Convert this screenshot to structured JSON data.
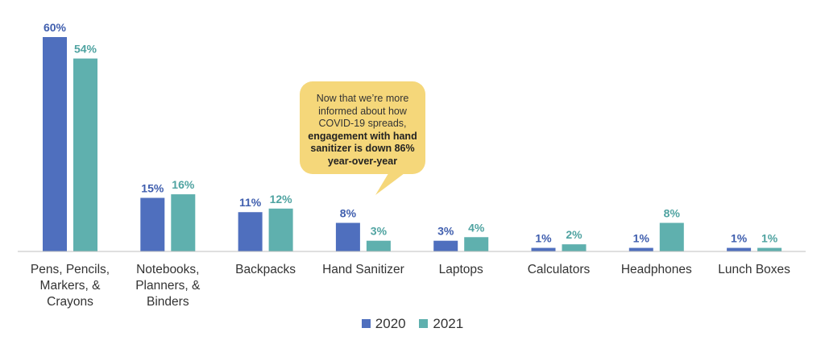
{
  "chart_data": {
    "type": "bar",
    "categories": [
      [
        "Pens, Pencils,",
        "Markers, &",
        "Crayons"
      ],
      [
        "Notebooks,",
        "Planners, &",
        "Binders"
      ],
      [
        "Backpacks"
      ],
      [
        "Hand Sanitizer"
      ],
      [
        "Laptops"
      ],
      [
        "Calculators"
      ],
      [
        "Headphones"
      ],
      [
        "Lunch Boxes"
      ]
    ],
    "series": [
      {
        "name": "2020",
        "color": "#4f6fbe",
        "label_color": "#3f5eae",
        "values": [
          60,
          15,
          11,
          8,
          3,
          1,
          1,
          1
        ],
        "labels": [
          "60%",
          "15%",
          "11%",
          "8%",
          "3%",
          "1%",
          "1%",
          "1%"
        ]
      },
      {
        "name": "2021",
        "color": "#5fb0ae",
        "label_color": "#4fa3a1",
        "values": [
          54,
          16,
          12,
          3,
          4,
          2,
          8,
          1
        ],
        "labels": [
          "54%",
          "16%",
          "12%",
          "3%",
          "4%",
          "2%",
          "8%",
          "1%"
        ]
      }
    ],
    "ylim": [
      0,
      60
    ],
    "legend_position": "bottom",
    "annotation": {
      "lines_normal": [
        "Now that we’re more",
        "informed about how",
        "COVID-19 spreads,"
      ],
      "lines_bold": [
        "engagement with hand",
        "sanitizer is down 86%",
        "year-over-year"
      ],
      "color": "#f5d77a"
    }
  },
  "legend": {
    "item_2020": "2020",
    "item_2021": "2021"
  }
}
